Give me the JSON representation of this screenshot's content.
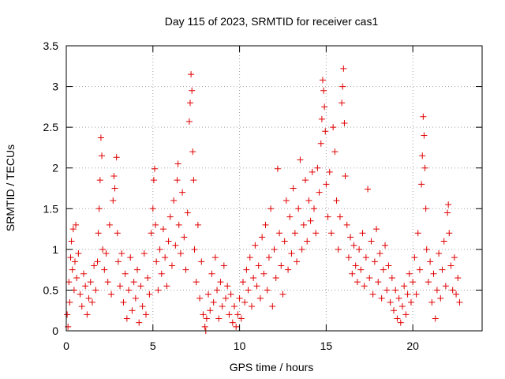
{
  "chart_data": {
    "type": "scatter",
    "title": "Day 115 of 2023, SRMTID for receiver cas1",
    "xlabel": "GPS time / hours",
    "ylabel": "SRMTID / TECUs",
    "xlim": [
      0,
      24
    ],
    "ylim": [
      0,
      3.5
    ],
    "xticks": [
      0,
      5,
      10,
      15,
      20
    ],
    "xtick_labels": [
      "0",
      "5",
      "10",
      "15",
      "20"
    ],
    "yticks": [
      0,
      0.5,
      1,
      1.5,
      2,
      2.5,
      3,
      3.5
    ],
    "ytick_labels": [
      "0",
      "0.5",
      "1",
      "1.5",
      "2",
      "2.5",
      "3",
      "3.5"
    ],
    "grid": true,
    "marker": "+",
    "marker_color": "#e00000",
    "series": [
      {
        "name": "cas1",
        "points": [
          [
            0.05,
            0.2
          ],
          [
            0.1,
            0.05
          ],
          [
            0.15,
            0.6
          ],
          [
            0.2,
            0.35
          ],
          [
            0.25,
            0.9
          ],
          [
            0.3,
            1.1
          ],
          [
            0.35,
            0.75
          ],
          [
            0.4,
            1.25
          ],
          [
            0.45,
            0.5
          ],
          [
            0.5,
            0.85
          ],
          [
            0.55,
            1.3
          ],
          [
            0.6,
            0.65
          ],
          [
            0.7,
            0.95
          ],
          [
            0.8,
            0.45
          ],
          [
            0.9,
            0.3
          ],
          [
            1.0,
            0.7
          ],
          [
            1.1,
            0.55
          ],
          [
            1.2,
            0.2
          ],
          [
            1.3,
            0.4
          ],
          [
            1.4,
            0.6
          ],
          [
            1.5,
            0.35
          ],
          [
            1.6,
            0.8
          ],
          [
            1.7,
            0.5
          ],
          [
            1.8,
            0.85
          ],
          [
            1.85,
            1.2
          ],
          [
            1.9,
            1.5
          ],
          [
            1.95,
            1.85
          ],
          [
            2.0,
            2.37
          ],
          [
            2.05,
            2.15
          ],
          [
            2.1,
            1.0
          ],
          [
            2.2,
            0.75
          ],
          [
            2.3,
            0.95
          ],
          [
            2.4,
            0.6
          ],
          [
            2.5,
            1.3
          ],
          [
            2.6,
            0.45
          ],
          [
            2.7,
            1.6
          ],
          [
            2.75,
            1.9
          ],
          [
            2.8,
            1.75
          ],
          [
            2.9,
            2.13
          ],
          [
            2.95,
            1.2
          ],
          [
            3.0,
            0.85
          ],
          [
            3.1,
            0.55
          ],
          [
            3.2,
            0.95
          ],
          [
            3.3,
            0.35
          ],
          [
            3.4,
            0.7
          ],
          [
            3.5,
            0.15
          ],
          [
            3.6,
            0.5
          ],
          [
            3.7,
            0.9
          ],
          [
            3.8,
            0.25
          ],
          [
            3.9,
            0.6
          ],
          [
            4.0,
            0.4
          ],
          [
            4.1,
            0.75
          ],
          [
            4.2,
            0.1
          ],
          [
            4.3,
            0.55
          ],
          [
            4.4,
            0.3
          ],
          [
            4.5,
            0.95
          ],
          [
            4.6,
            0.2
          ],
          [
            4.7,
            0.65
          ],
          [
            4.8,
            0.45
          ],
          [
            4.9,
            1.2
          ],
          [
            5.0,
            1.5
          ],
          [
            5.05,
            1.85
          ],
          [
            5.1,
            1.99
          ],
          [
            5.15,
            1.3
          ],
          [
            5.2,
            0.85
          ],
          [
            5.3,
            0.5
          ],
          [
            5.4,
            1.0
          ],
          [
            5.5,
            0.7
          ],
          [
            5.6,
            1.25
          ],
          [
            5.7,
            0.9
          ],
          [
            5.8,
            0.55
          ],
          [
            5.9,
            1.1
          ],
          [
            6.0,
            1.4
          ],
          [
            6.1,
            0.8
          ],
          [
            6.2,
            1.6
          ],
          [
            6.3,
            1.05
          ],
          [
            6.4,
            1.85
          ],
          [
            6.45,
            2.05
          ],
          [
            6.5,
            1.3
          ],
          [
            6.6,
            0.95
          ],
          [
            6.7,
            1.7
          ],
          [
            6.8,
            1.15
          ],
          [
            6.9,
            0.75
          ],
          [
            7.0,
            1.45
          ],
          [
            7.1,
            2.57
          ],
          [
            7.15,
            2.8
          ],
          [
            7.2,
            3.15
          ],
          [
            7.25,
            2.95
          ],
          [
            7.3,
            2.2
          ],
          [
            7.35,
            1.85
          ],
          [
            7.4,
            1.0
          ],
          [
            7.5,
            0.6
          ],
          [
            7.6,
            1.3
          ],
          [
            7.7,
            0.4
          ],
          [
            7.8,
            0.85
          ],
          [
            7.9,
            0.2
          ],
          [
            8.0,
            0.05
          ],
          [
            8.05,
            0.0
          ],
          [
            8.1,
            0.15
          ],
          [
            8.2,
            0.45
          ],
          [
            8.3,
            0.25
          ],
          [
            8.4,
            0.7
          ],
          [
            8.5,
            0.35
          ],
          [
            8.6,
            0.9
          ],
          [
            8.7,
            0.5
          ],
          [
            8.8,
            0.15
          ],
          [
            8.9,
            0.6
          ],
          [
            9.0,
            0.3
          ],
          [
            9.1,
            0.8
          ],
          [
            9.2,
            0.4
          ],
          [
            9.3,
            0.55
          ],
          [
            9.4,
            0.2
          ],
          [
            9.5,
            0.45
          ],
          [
            9.6,
            0.1
          ],
          [
            9.7,
            0.3
          ],
          [
            9.8,
            0.05
          ],
          [
            9.9,
            0.2
          ],
          [
            10.0,
            0.4
          ],
          [
            10.1,
            0.15
          ],
          [
            10.2,
            0.6
          ],
          [
            10.3,
            0.35
          ],
          [
            10.4,
            0.75
          ],
          [
            10.5,
            0.5
          ],
          [
            10.6,
            0.9
          ],
          [
            10.7,
            0.3
          ],
          [
            10.8,
            0.65
          ],
          [
            10.9,
            1.05
          ],
          [
            11.0,
            0.55
          ],
          [
            11.1,
            0.8
          ],
          [
            11.2,
            0.4
          ],
          [
            11.3,
            1.15
          ],
          [
            11.4,
            0.7
          ],
          [
            11.5,
            1.3
          ],
          [
            11.6,
            0.5
          ],
          [
            11.7,
            0.9
          ],
          [
            11.8,
            1.5
          ],
          [
            11.9,
            0.3
          ],
          [
            12.0,
            1.0
          ],
          [
            12.1,
            0.65
          ],
          [
            12.2,
            1.99
          ],
          [
            12.3,
            1.2
          ],
          [
            12.4,
            0.8
          ],
          [
            12.5,
            0.45
          ],
          [
            12.6,
            1.1
          ],
          [
            12.7,
            1.6
          ],
          [
            12.8,
            0.75
          ],
          [
            12.9,
            1.4
          ],
          [
            13.0,
            0.95
          ],
          [
            13.1,
            1.75
          ],
          [
            13.2,
            1.2
          ],
          [
            13.3,
            0.85
          ],
          [
            13.4,
            1.5
          ],
          [
            13.5,
            2.1
          ],
          [
            13.6,
            1.0
          ],
          [
            13.7,
            1.3
          ],
          [
            13.8,
            1.85
          ],
          [
            13.9,
            1.1
          ],
          [
            14.0,
            1.6
          ],
          [
            14.1,
            1.35
          ],
          [
            14.2,
            1.95
          ],
          [
            14.3,
            1.5
          ],
          [
            14.4,
            1.2
          ],
          [
            14.5,
            2.0
          ],
          [
            14.6,
            1.7
          ],
          [
            14.7,
            2.3
          ],
          [
            14.75,
            2.6
          ],
          [
            14.8,
            3.08
          ],
          [
            14.85,
            2.95
          ],
          [
            14.9,
            2.75
          ],
          [
            14.95,
            2.45
          ],
          [
            15.0,
            1.8
          ],
          [
            15.1,
            1.4
          ],
          [
            15.2,
            1.95
          ],
          [
            15.3,
            1.2
          ],
          [
            15.4,
            2.5
          ],
          [
            15.5,
            2.2
          ],
          [
            15.6,
            1.6
          ],
          [
            15.7,
            1.0
          ],
          [
            15.8,
            1.4
          ],
          [
            15.9,
            2.8
          ],
          [
            15.95,
            3.0
          ],
          [
            16.0,
            3.22
          ],
          [
            16.05,
            2.55
          ],
          [
            16.1,
            1.9
          ],
          [
            16.2,
            1.3
          ],
          [
            16.3,
            0.9
          ],
          [
            16.4,
            1.15
          ],
          [
            16.5,
            0.7
          ],
          [
            16.6,
            1.05
          ],
          [
            16.7,
            0.8
          ],
          [
            16.8,
            0.6
          ],
          [
            16.9,
            1.0
          ],
          [
            17.0,
            0.75
          ],
          [
            17.1,
            1.2
          ],
          [
            17.2,
            0.55
          ],
          [
            17.3,
            0.9
          ],
          [
            17.4,
            1.74
          ],
          [
            17.5,
            0.65
          ],
          [
            17.6,
            1.1
          ],
          [
            17.7,
            0.45
          ],
          [
            17.8,
            0.85
          ],
          [
            17.9,
            1.25
          ],
          [
            18.0,
            0.6
          ],
          [
            18.1,
            0.95
          ],
          [
            18.2,
            0.4
          ],
          [
            18.3,
            0.75
          ],
          [
            18.4,
            1.05
          ],
          [
            18.5,
            0.5
          ],
          [
            18.6,
            0.8
          ],
          [
            18.7,
            0.35
          ],
          [
            18.8,
            0.65
          ],
          [
            18.9,
            0.25
          ],
          [
            19.0,
            0.5
          ],
          [
            19.1,
            0.15
          ],
          [
            19.2,
            0.4
          ],
          [
            19.3,
            0.1
          ],
          [
            19.4,
            0.3
          ],
          [
            19.5,
            0.55
          ],
          [
            19.6,
            0.2
          ],
          [
            19.7,
            0.45
          ],
          [
            19.8,
            0.7
          ],
          [
            19.9,
            0.35
          ],
          [
            20.0,
            0.6
          ],
          [
            20.1,
            0.9
          ],
          [
            20.2,
            0.45
          ],
          [
            20.3,
            1.2
          ],
          [
            20.4,
            0.75
          ],
          [
            20.5,
            1.8
          ],
          [
            20.55,
            2.15
          ],
          [
            20.6,
            2.63
          ],
          [
            20.65,
            2.4
          ],
          [
            20.7,
            2.0
          ],
          [
            20.75,
            1.5
          ],
          [
            20.8,
            1.0
          ],
          [
            20.9,
            0.6
          ],
          [
            21.0,
            0.85
          ],
          [
            21.1,
            0.35
          ],
          [
            21.2,
            0.7
          ],
          [
            21.3,
            0.15
          ],
          [
            21.4,
            0.5
          ],
          [
            21.5,
            0.95
          ],
          [
            21.6,
            0.4
          ],
          [
            21.7,
            0.75
          ],
          [
            21.8,
            1.1
          ],
          [
            21.9,
            0.55
          ],
          [
            22.0,
            1.45
          ],
          [
            22.05,
            1.55
          ],
          [
            22.1,
            1.2
          ],
          [
            22.2,
            0.8
          ],
          [
            22.3,
            0.5
          ],
          [
            22.4,
            0.9
          ],
          [
            22.5,
            0.45
          ],
          [
            22.6,
            0.65
          ],
          [
            22.7,
            0.35
          ]
        ]
      }
    ]
  }
}
